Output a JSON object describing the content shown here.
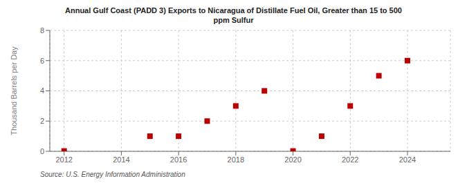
{
  "chart_data": {
    "type": "scatter",
    "title": "Annual Gulf Coast (PADD 3) Exports to Nicaragua of Distillate Fuel Oil, Greater than 15 to 500\nppm Sulfur",
    "ylabel": "Thousand Barrels per Day",
    "annotations": [
      "Source: U.S. Energy Information Administration"
    ],
    "x": [
      2012,
      2015,
      2016,
      2017,
      2018,
      2019,
      2020,
      2021,
      2022,
      2023,
      2024
    ],
    "values": [
      0.02,
      1.0,
      1.0,
      2.0,
      3.0,
      4.0,
      0.02,
      1.0,
      3.0,
      5.0,
      6.0
    ],
    "xlim": [
      2011.5,
      2025.5
    ],
    "xticks": [
      2012,
      2014,
      2016,
      2018,
      2020,
      2022,
      2024
    ],
    "ylim": [
      0,
      8
    ],
    "yticks": [
      0,
      2,
      4,
      6,
      8
    ],
    "color": "#bb0000",
    "marker": "square",
    "grid": true
  }
}
